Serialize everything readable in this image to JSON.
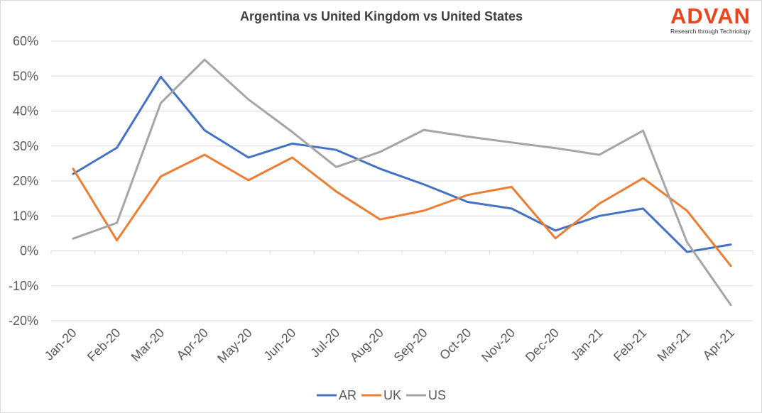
{
  "chart_data": {
    "type": "line",
    "title": "Argentina vs United Kingdom vs United States",
    "categories": [
      "Jan-20",
      "Feb-20",
      "Mar-20",
      "Apr-20",
      "May-20",
      "Jun-20",
      "Jul-20",
      "Aug-20",
      "Sep-20",
      "Oct-20",
      "Nov-20",
      "Dec-20",
      "Jan-21",
      "Feb-21",
      "Mar-21",
      "Apr-21"
    ],
    "ylim": [
      -20,
      60
    ],
    "yticks": [
      -20,
      -10,
      0,
      10,
      20,
      30,
      40,
      50,
      60
    ],
    "ytick_labels": [
      "-20%",
      "-10%",
      "0%",
      "10%",
      "20%",
      "30%",
      "40%",
      "50%",
      "60%"
    ],
    "grid": true,
    "legend_position": "bottom",
    "series": [
      {
        "name": "AR",
        "color": "#4472c4",
        "values": [
          22,
          29.5,
          49.8,
          34.5,
          26.7,
          30.7,
          28.9,
          23.5,
          19,
          14,
          12.1,
          5.8,
          10,
          12.1,
          -0.3,
          1.8
        ]
      },
      {
        "name": "UK",
        "color": "#ed7d31",
        "values": [
          23.5,
          3,
          21.3,
          27.5,
          20.2,
          26.7,
          17,
          9,
          11.5,
          16,
          18.3,
          3.6,
          13.5,
          20.8,
          11.5,
          -4.3
        ]
      },
      {
        "name": "US",
        "color": "#a5a5a5",
        "values": [
          3.5,
          8,
          42.3,
          54.7,
          43.3,
          34,
          24,
          28.3,
          34.6,
          32.7,
          31,
          29.4,
          27.5,
          34.4,
          2.5,
          -15.5
        ]
      }
    ]
  },
  "brand": {
    "name": "ADVAN",
    "tagline": "Research through Technology",
    "color": "#e8461f"
  }
}
